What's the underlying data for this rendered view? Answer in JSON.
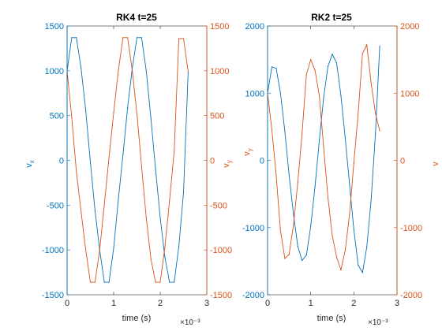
{
  "colors": {
    "vx": "#0072BD",
    "vy": "#D95319",
    "axis": "#262626",
    "bg": "#ffffff"
  },
  "chart_data": [
    {
      "type": "line",
      "title": "RK4 t=25",
      "xlabel": "time (s)",
      "x_exponent": "×10⁻³",
      "ylabel_left": "v",
      "ylabel_left_sub": "x",
      "ylabel_right": "v",
      "ylabel_right_sub": "y",
      "xlim": [
        0,
        0.003
      ],
      "ylim_left": [
        -1500,
        1500
      ],
      "ylim_right": [
        -1500,
        1500
      ],
      "xticks": [
        0,
        0.001,
        0.002,
        0.003
      ],
      "xtick_labels": [
        "0",
        "1",
        "2",
        "3"
      ],
      "yticks_left": [
        -1500,
        -1000,
        -500,
        0,
        500,
        1000,
        1500
      ],
      "yticks_left_labels": [
        "-1500",
        "-1000",
        "-500",
        "0",
        "500",
        "1000",
        "1500"
      ],
      "yticks_right": [
        -1500,
        -1000,
        -500,
        0,
        500,
        1000,
        1500
      ],
      "yticks_right_labels": [
        "-1500",
        "-1000",
        "-500",
        "0",
        "500",
        "1000",
        "1500"
      ],
      "series": [
        {
          "axis": "left",
          "color": "#0072BD",
          "x": [
            0,
            0.0001,
            0.0002,
            0.0003,
            0.0004,
            0.0005,
            0.0006,
            0.0007,
            0.0008,
            0.0009,
            0.001,
            0.0011,
            0.0012,
            0.0013,
            0.0014,
            0.0015,
            0.0016,
            0.0017,
            0.0018,
            0.0019,
            0.002,
            0.0021,
            0.0022,
            0.0023,
            0.0024,
            0.0025,
            0.0026
          ],
          "values": [
            1000,
            1370,
            1370,
            1030,
            560,
            -20,
            -560,
            -1000,
            -1360,
            -1360,
            -980,
            -440,
            60,
            590,
            1030,
            1370,
            1370,
            1000,
            470,
            -100,
            -640,
            -1080,
            -1360,
            -1360,
            -960,
            -360,
            990
          ]
        },
        {
          "axis": "right",
          "color": "#D95319",
          "x": [
            0,
            0.0001,
            0.0002,
            0.0003,
            0.0004,
            0.0005,
            0.0006,
            0.0007,
            0.0008,
            0.0009,
            0.001,
            0.0011,
            0.0012,
            0.0013,
            0.0014,
            0.0015,
            0.0016,
            0.0017,
            0.0018,
            0.0019,
            0.002,
            0.0021,
            0.0022,
            0.0023,
            0.0024,
            0.0025,
            0.0026
          ],
          "values": [
            1000,
            480,
            -130,
            -570,
            -1000,
            -1360,
            -1360,
            -1000,
            -490,
            30,
            530,
            1000,
            1370,
            1370,
            1000,
            520,
            -70,
            -640,
            -1100,
            -1360,
            -1360,
            -970,
            -450,
            100,
            1360,
            1360,
            990
          ]
        }
      ]
    },
    {
      "type": "line",
      "title": "RK2 t=25",
      "xlabel": "time (s)",
      "x_exponent": "×10⁻³",
      "ylabel_left": "v",
      "ylabel_left_sub": "y",
      "ylabel_right": "v",
      "ylabel_right_sub": "",
      "xlim": [
        0,
        0.003
      ],
      "ylim_left": [
        -2000,
        2000
      ],
      "ylim_right": [
        -2000,
        2000
      ],
      "xticks": [
        0,
        0.001,
        0.002,
        0.003
      ],
      "xtick_labels": [
        "0",
        "1",
        "2",
        "3"
      ],
      "yticks_left": [
        -2000,
        -1000,
        0,
        1000,
        2000
      ],
      "yticks_left_labels": [
        "-2000",
        "-1000",
        "0",
        "1000",
        "2000"
      ],
      "yticks_right": [
        -2000,
        -1000,
        0,
        1000,
        2000
      ],
      "yticks_right_labels": [
        "-2000",
        "-1000",
        "0",
        "1000",
        "2000"
      ],
      "series": [
        {
          "axis": "left",
          "color": "#0072BD",
          "x": [
            0,
            0.0001,
            0.0002,
            0.0003,
            0.0004,
            0.0005,
            0.0006,
            0.0007,
            0.0008,
            0.0009,
            0.001,
            0.0011,
            0.0012,
            0.0013,
            0.0014,
            0.0015,
            0.0016,
            0.0017,
            0.0018,
            0.0019,
            0.002,
            0.0021,
            0.0022,
            0.0023,
            0.0024,
            0.0025,
            0.0026
          ],
          "values": [
            1000,
            1390,
            1370,
            1000,
            430,
            -220,
            -800,
            -1280,
            -1490,
            -1410,
            -980,
            -390,
            300,
            940,
            1400,
            1580,
            1450,
            970,
            330,
            -360,
            -1030,
            -1560,
            -1670,
            -1290,
            -590,
            400,
            1700
          ]
        },
        {
          "axis": "right",
          "color": "#D95319",
          "x": [
            0,
            0.0001,
            0.0002,
            0.0003,
            0.0004,
            0.0005,
            0.0006,
            0.0007,
            0.0008,
            0.0009,
            0.001,
            0.0011,
            0.0012,
            0.0013,
            0.0014,
            0.0015,
            0.0016,
            0.0017,
            0.0018,
            0.0019,
            0.002,
            0.0021,
            0.0022,
            0.0023,
            0.0024,
            0.0025,
            0.0026
          ],
          "values": [
            1000,
            450,
            -220,
            -1050,
            -1460,
            -1400,
            -960,
            -330,
            400,
            1280,
            1500,
            1340,
            960,
            190,
            -550,
            -1120,
            -1440,
            -1630,
            -1340,
            -800,
            -40,
            700,
            1590,
            1720,
            1150,
            700,
            440
          ]
        }
      ]
    }
  ]
}
